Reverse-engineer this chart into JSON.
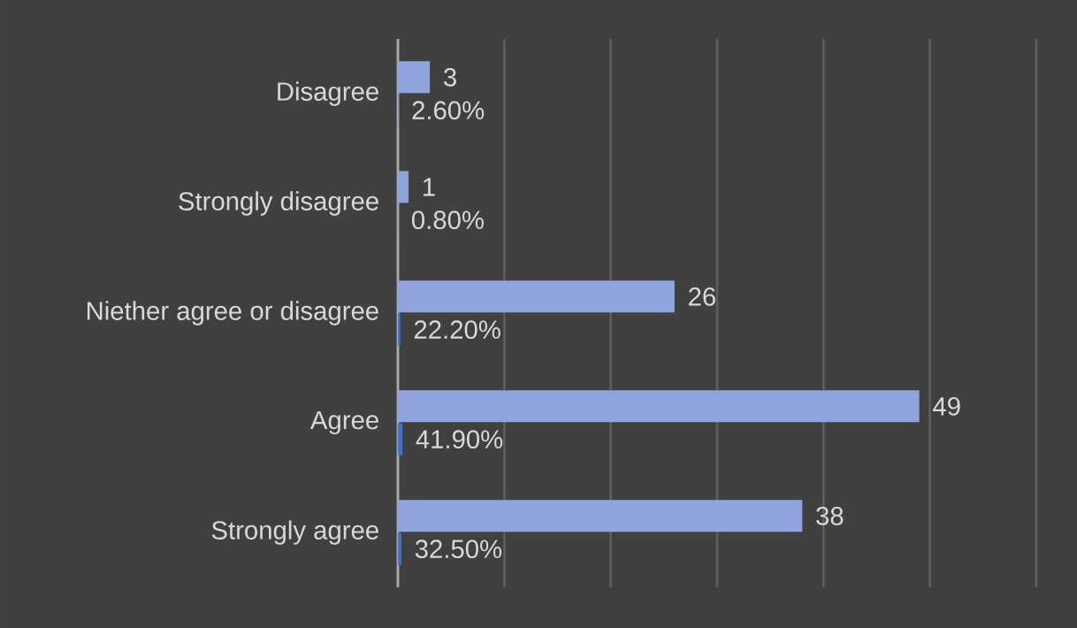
{
  "chart_data": {
    "type": "bar",
    "orientation": "horizontal",
    "categories": [
      "Disagree",
      "Strongly disagree",
      "Niether agree or disagree",
      "Agree",
      "Strongly agree"
    ],
    "series": [
      {
        "color": "#8fa4dc",
        "values": [
          3,
          1,
          26,
          49,
          38
        ],
        "value_labels": [
          "3",
          "1",
          "26",
          "49",
          "38"
        ]
      },
      {
        "color": "#4472c4",
        "values": [
          0.026,
          0.008,
          0.222,
          0.419,
          0.325
        ],
        "value_labels": [
          "2.60%",
          "0.80%",
          "22.20%",
          "41.90%",
          "32.50%"
        ]
      }
    ],
    "xlim": [
      0,
      60
    ],
    "grid": "x",
    "tick_labels": "y"
  }
}
